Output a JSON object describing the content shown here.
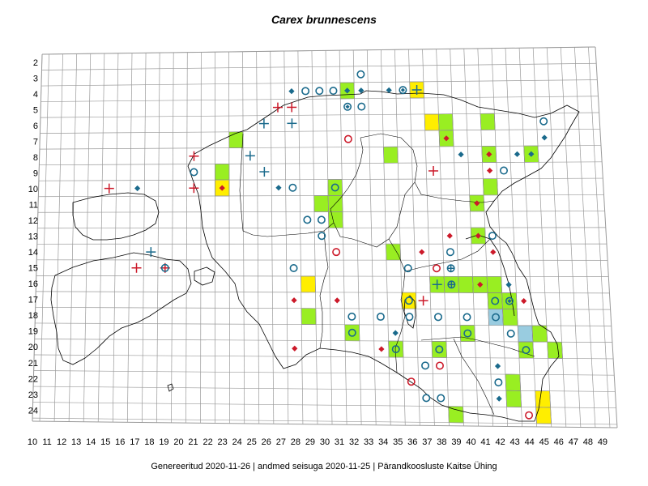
{
  "title": "Carex brunnescens",
  "footer": "Genereeritud 2020-11-26  |  andmed seisuga 2020-11-25  |  Pärandkoosluste Kaitse Ühing",
  "colors": {
    "grid": "#9a9a9a",
    "outline": "#000000",
    "green_fill": "#99ee22",
    "yellow_fill": "#ffee00",
    "blue_fill": "#99cce0",
    "teal": "#1a6a8c",
    "red": "#cc1a2a"
  },
  "axes": {
    "x_ticks": [
      "10",
      "11",
      "12",
      "13",
      "14",
      "15",
      "16",
      "17",
      "18",
      "19",
      "20",
      "21",
      "22",
      "23",
      "24",
      "25",
      "26",
      "27",
      "28",
      "29",
      "30",
      "31",
      "32",
      "33",
      "34",
      "35",
      "36",
      "37",
      "38",
      "39",
      "40",
      "41",
      "42",
      "43",
      "44",
      "45",
      "46",
      "47",
      "48",
      "49"
    ],
    "y_ticks": [
      "2",
      "3",
      "4",
      "5",
      "6",
      "7",
      "8",
      "9",
      "10",
      "11",
      "12",
      "13",
      "14",
      "15",
      "16",
      "17",
      "18",
      "19",
      "20",
      "21",
      "22",
      "23",
      "24"
    ]
  },
  "filled_cells": [
    {
      "x": 32,
      "y": 4,
      "fill": "green"
    },
    {
      "x": 37,
      "y": 4,
      "fill": "yellow"
    },
    {
      "x": 38,
      "y": 6,
      "fill": "yellow"
    },
    {
      "x": 39,
      "y": 6,
      "fill": "green"
    },
    {
      "x": 42,
      "y": 6,
      "fill": "green"
    },
    {
      "x": 24,
      "y": 7,
      "fill": "green"
    },
    {
      "x": 39,
      "y": 7,
      "fill": "green"
    },
    {
      "x": 35,
      "y": 8,
      "fill": "green"
    },
    {
      "x": 42,
      "y": 8,
      "fill": "green"
    },
    {
      "x": 45,
      "y": 8,
      "fill": "green"
    },
    {
      "x": 23,
      "y": 9,
      "fill": "green"
    },
    {
      "x": 23,
      "y": 10,
      "fill": "yellow"
    },
    {
      "x": 31,
      "y": 10,
      "fill": "green"
    },
    {
      "x": 42,
      "y": 10,
      "fill": "green"
    },
    {
      "x": 30,
      "y": 11,
      "fill": "green"
    },
    {
      "x": 31,
      "y": 11,
      "fill": "green"
    },
    {
      "x": 41,
      "y": 11,
      "fill": "green"
    },
    {
      "x": 31,
      "y": 12,
      "fill": "green"
    },
    {
      "x": 41,
      "y": 13,
      "fill": "green"
    },
    {
      "x": 35,
      "y": 14,
      "fill": "green"
    },
    {
      "x": 38,
      "y": 16,
      "fill": "green"
    },
    {
      "x": 39,
      "y": 16,
      "fill": "green"
    },
    {
      "x": 40,
      "y": 16,
      "fill": "green"
    },
    {
      "x": 41,
      "y": 16,
      "fill": "green"
    },
    {
      "x": 42,
      "y": 16,
      "fill": "green"
    },
    {
      "x": 29,
      "y": 16,
      "fill": "yellow"
    },
    {
      "x": 36,
      "y": 17,
      "fill": "yellow"
    },
    {
      "x": 42,
      "y": 17,
      "fill": "green"
    },
    {
      "x": 43,
      "y": 17,
      "fill": "green"
    },
    {
      "x": 29,
      "y": 18,
      "fill": "green"
    },
    {
      "x": 42,
      "y": 18,
      "fill": "blue"
    },
    {
      "x": 43,
      "y": 18,
      "fill": "green"
    },
    {
      "x": 32,
      "y": 19,
      "fill": "green"
    },
    {
      "x": 40,
      "y": 19,
      "fill": "green"
    },
    {
      "x": 44,
      "y": 19,
      "fill": "blue"
    },
    {
      "x": 45,
      "y": 19,
      "fill": "green"
    },
    {
      "x": 35,
      "y": 20,
      "fill": "green"
    },
    {
      "x": 38,
      "y": 20,
      "fill": "green"
    },
    {
      "x": 44,
      "y": 20,
      "fill": "green"
    },
    {
      "x": 46,
      "y": 20,
      "fill": "green"
    },
    {
      "x": 43,
      "y": 22,
      "fill": "green"
    },
    {
      "x": 43,
      "y": 23,
      "fill": "green"
    },
    {
      "x": 45,
      "y": 23,
      "fill": "yellow"
    },
    {
      "x": 39,
      "y": 24,
      "fill": "green"
    },
    {
      "x": 45,
      "y": 24,
      "fill": "yellow"
    }
  ],
  "markers": [
    {
      "x": 33,
      "y": 3,
      "type": "ring",
      "color": "teal"
    },
    {
      "x": 28,
      "y": 4,
      "type": "diamond",
      "color": "teal"
    },
    {
      "x": 29,
      "y": 4,
      "type": "ring",
      "color": "teal"
    },
    {
      "x": 30,
      "y": 4,
      "type": "ring",
      "color": "teal"
    },
    {
      "x": 31,
      "y": 4,
      "type": "ring",
      "color": "teal"
    },
    {
      "x": 32,
      "y": 4,
      "type": "diamond",
      "color": "teal"
    },
    {
      "x": 33,
      "y": 4,
      "type": "diamond",
      "color": "teal"
    },
    {
      "x": 35,
      "y": 4,
      "type": "diamond",
      "color": "teal"
    },
    {
      "x": 36,
      "y": 4,
      "type": "ring-diamond",
      "color": "teal"
    },
    {
      "x": 37,
      "y": 4,
      "type": "plus",
      "color": "teal"
    },
    {
      "x": 32,
      "y": 5,
      "type": "ring-diamond",
      "color": "teal"
    },
    {
      "x": 33,
      "y": 5,
      "type": "ring",
      "color": "teal"
    },
    {
      "x": 27,
      "y": 5,
      "type": "plus",
      "color": "red"
    },
    {
      "x": 28,
      "y": 5,
      "type": "plus",
      "color": "red"
    },
    {
      "x": 46,
      "y": 6,
      "type": "ring",
      "color": "teal"
    },
    {
      "x": 26,
      "y": 6,
      "type": "plus",
      "color": "teal"
    },
    {
      "x": 28,
      "y": 6,
      "type": "plus",
      "color": "teal"
    },
    {
      "x": 32,
      "y": 7,
      "type": "ring",
      "color": "red"
    },
    {
      "x": 39,
      "y": 7,
      "type": "diamond",
      "color": "red"
    },
    {
      "x": 46,
      "y": 7,
      "type": "diamond",
      "color": "teal"
    },
    {
      "x": 40,
      "y": 8,
      "type": "diamond",
      "color": "teal"
    },
    {
      "x": 42,
      "y": 8,
      "type": "diamond",
      "color": "red"
    },
    {
      "x": 44,
      "y": 8,
      "type": "diamond",
      "color": "teal"
    },
    {
      "x": 45,
      "y": 8,
      "type": "diamond",
      "color": "teal"
    },
    {
      "x": 21,
      "y": 8,
      "type": "plus",
      "color": "red"
    },
    {
      "x": 25,
      "y": 8,
      "type": "plus",
      "color": "teal"
    },
    {
      "x": 38,
      "y": 9,
      "type": "plus",
      "color": "red"
    },
    {
      "x": 42,
      "y": 9,
      "type": "diamond",
      "color": "red"
    },
    {
      "x": 43,
      "y": 9,
      "type": "ring",
      "color": "teal"
    },
    {
      "x": 21,
      "y": 9,
      "type": "ring",
      "color": "teal"
    },
    {
      "x": 26,
      "y": 9,
      "type": "plus",
      "color": "teal"
    },
    {
      "x": 15,
      "y": 10,
      "type": "plus",
      "color": "red"
    },
    {
      "x": 17,
      "y": 10,
      "type": "diamond",
      "color": "teal"
    },
    {
      "x": 21,
      "y": 10,
      "type": "plus",
      "color": "red"
    },
    {
      "x": 23,
      "y": 10,
      "type": "diamond",
      "color": "red"
    },
    {
      "x": 27,
      "y": 10,
      "type": "diamond",
      "color": "teal"
    },
    {
      "x": 28,
      "y": 10,
      "type": "ring",
      "color": "teal"
    },
    {
      "x": 31,
      "y": 10,
      "type": "ring",
      "color": "teal"
    },
    {
      "x": 41,
      "y": 11,
      "type": "diamond",
      "color": "red"
    },
    {
      "x": 29,
      "y": 12,
      "type": "ring",
      "color": "teal"
    },
    {
      "x": 30,
      "y": 12,
      "type": "ring",
      "color": "teal"
    },
    {
      "x": 30,
      "y": 13,
      "type": "ring",
      "color": "teal"
    },
    {
      "x": 39,
      "y": 13,
      "type": "diamond",
      "color": "red"
    },
    {
      "x": 41,
      "y": 13,
      "type": "diamond",
      "color": "red"
    },
    {
      "x": 42,
      "y": 13,
      "type": "ring",
      "color": "teal"
    },
    {
      "x": 18,
      "y": 14,
      "type": "plus",
      "color": "teal"
    },
    {
      "x": 31,
      "y": 14,
      "type": "ring",
      "color": "red"
    },
    {
      "x": 37,
      "y": 14,
      "type": "diamond",
      "color": "red"
    },
    {
      "x": 39,
      "y": 14,
      "type": "ring",
      "color": "teal"
    },
    {
      "x": 42,
      "y": 14,
      "type": "diamond",
      "color": "red"
    },
    {
      "x": 17,
      "y": 15,
      "type": "plus",
      "color": "red"
    },
    {
      "x": 19,
      "y": 15,
      "type": "plus",
      "color": "red"
    },
    {
      "x": 19,
      "y": 15,
      "type": "ring",
      "color": "teal"
    },
    {
      "x": 28,
      "y": 15,
      "type": "ring",
      "color": "teal"
    },
    {
      "x": 36,
      "y": 15,
      "type": "ring",
      "color": "teal"
    },
    {
      "x": 38,
      "y": 15,
      "type": "ring",
      "color": "red"
    },
    {
      "x": 39,
      "y": 15,
      "type": "ring-plus",
      "color": "teal"
    },
    {
      "x": 38,
      "y": 16,
      "type": "plus",
      "color": "teal"
    },
    {
      "x": 39,
      "y": 16,
      "type": "ring-plus",
      "color": "teal"
    },
    {
      "x": 41,
      "y": 16,
      "type": "diamond",
      "color": "red"
    },
    {
      "x": 43,
      "y": 16,
      "type": "diamond",
      "color": "teal"
    },
    {
      "x": 28,
      "y": 17,
      "type": "diamond",
      "color": "red"
    },
    {
      "x": 31,
      "y": 17,
      "type": "diamond",
      "color": "red"
    },
    {
      "x": 36,
      "y": 17,
      "type": "ring",
      "color": "teal"
    },
    {
      "x": 37,
      "y": 17,
      "type": "plus",
      "color": "red"
    },
    {
      "x": 42,
      "y": 17,
      "type": "ring",
      "color": "teal"
    },
    {
      "x": 43,
      "y": 17,
      "type": "ring-diamond",
      "color": "teal"
    },
    {
      "x": 44,
      "y": 17,
      "type": "diamond",
      "color": "red"
    },
    {
      "x": 32,
      "y": 18,
      "type": "ring",
      "color": "teal"
    },
    {
      "x": 34,
      "y": 18,
      "type": "ring",
      "color": "teal"
    },
    {
      "x": 36,
      "y": 18,
      "type": "ring",
      "color": "teal"
    },
    {
      "x": 38,
      "y": 18,
      "type": "ring",
      "color": "teal"
    },
    {
      "x": 40,
      "y": 18,
      "type": "ring",
      "color": "teal"
    },
    {
      "x": 42,
      "y": 18,
      "type": "ring",
      "color": "teal"
    },
    {
      "x": 32,
      "y": 19,
      "type": "ring",
      "color": "teal"
    },
    {
      "x": 35,
      "y": 19,
      "type": "diamond",
      "color": "teal"
    },
    {
      "x": 40,
      "y": 19,
      "type": "ring",
      "color": "teal"
    },
    {
      "x": 43,
      "y": 19,
      "type": "ring",
      "color": "teal"
    },
    {
      "x": 28,
      "y": 20,
      "type": "diamond",
      "color": "red"
    },
    {
      "x": 34,
      "y": 20,
      "type": "diamond",
      "color": "red"
    },
    {
      "x": 35,
      "y": 20,
      "type": "ring",
      "color": "teal"
    },
    {
      "x": 38,
      "y": 20,
      "type": "ring",
      "color": "teal"
    },
    {
      "x": 44,
      "y": 20,
      "type": "ring",
      "color": "teal"
    },
    {
      "x": 37,
      "y": 21,
      "type": "ring",
      "color": "teal"
    },
    {
      "x": 38,
      "y": 21,
      "type": "ring",
      "color": "red"
    },
    {
      "x": 42,
      "y": 21,
      "type": "diamond",
      "color": "teal"
    },
    {
      "x": 36,
      "y": 22,
      "type": "ring",
      "color": "red"
    },
    {
      "x": 42,
      "y": 22,
      "type": "ring",
      "color": "teal"
    },
    {
      "x": 37,
      "y": 23,
      "type": "ring",
      "color": "teal"
    },
    {
      "x": 38,
      "y": 23,
      "type": "ring",
      "color": "teal"
    },
    {
      "x": 42,
      "y": 23,
      "type": "diamond",
      "color": "teal"
    },
    {
      "x": 44,
      "y": 24,
      "type": "ring",
      "color": "red"
    }
  ]
}
